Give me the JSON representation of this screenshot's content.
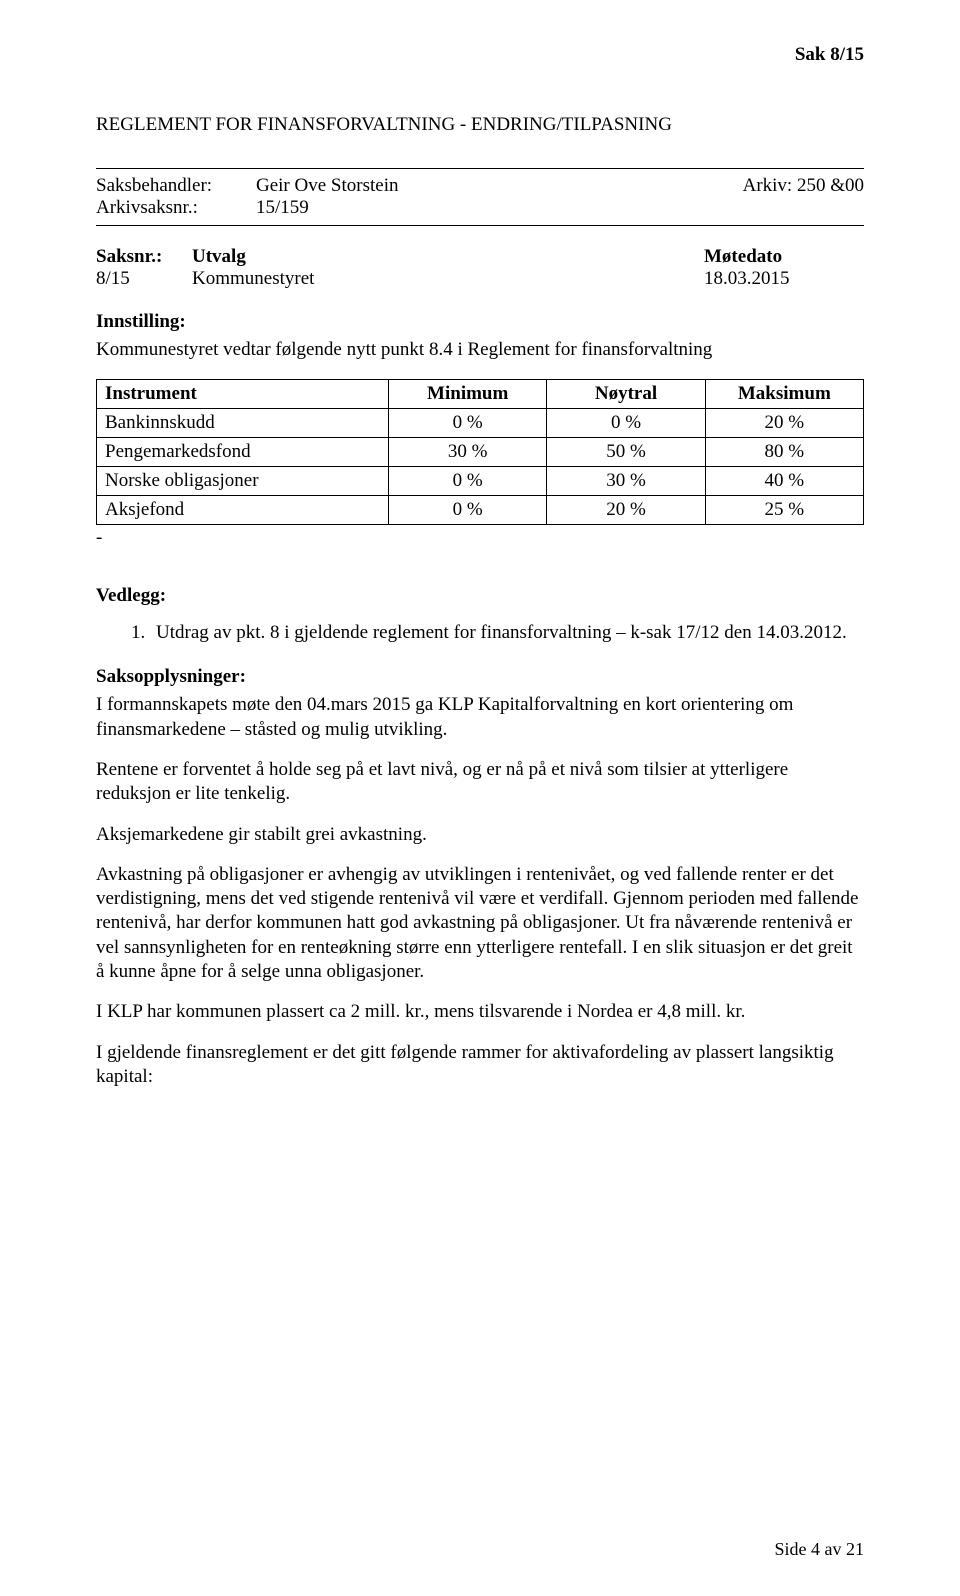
{
  "header": {
    "sak_label": "Sak  8/15"
  },
  "title": "REGLEMENT FOR FINANSFORVALTNING - ENDRING/TILPASNING",
  "meta": {
    "saksbehandler_label": "Saksbehandler:",
    "saksbehandler_value": "Geir Ove Storstein",
    "arkiv_label": "Arkiv: 250 &00",
    "arkivsaksnr_label": "Arkivsaksnr.:",
    "arkivsaksnr_value": "15/159"
  },
  "utvalg": {
    "header": {
      "saksnr": "Saksnr.:",
      "utvalg": "Utvalg",
      "motedato": "Møtedato"
    },
    "row": {
      "saksnr": "8/15",
      "utvalg": "Kommunestyret",
      "motedato": "18.03.2015"
    }
  },
  "innstilling": {
    "heading": "Innstilling:",
    "text": "Kommunestyret vedtar følgende nytt punkt 8.4 i Reglement for finansforvaltning"
  },
  "table": {
    "headers": {
      "instrument": "Instrument",
      "minimum": "Minimum",
      "noytral": "Nøytral",
      "maksimum": "Maksimum"
    },
    "rows": [
      {
        "instrument": "Bankinnskudd",
        "min": "0 %",
        "noy": "0 %",
        "max": "20 %"
      },
      {
        "instrument": "Pengemarkedsfond",
        "min": "30 %",
        "noy": "50 %",
        "max": "80 %"
      },
      {
        "instrument": "Norske obligasjoner",
        "min": "0 %",
        "noy": "30 %",
        "max": "40 %"
      },
      {
        "instrument": "Aksjefond",
        "min": "0 %",
        "noy": "20 %",
        "max": "25 %"
      }
    ]
  },
  "dash": "-",
  "vedlegg": {
    "heading": "Vedlegg:",
    "items": [
      "Utdrag av pkt. 8 i gjeldende reglement for finansforvaltning – k-sak 17/12 den 14.03.2012."
    ]
  },
  "saksopp_heading": "Saksopplysninger:",
  "paragraphs": [
    "I formannskapets møte den 04.mars 2015 ga KLP Kapitalforvaltning en kort orientering om finansmarkedene – ståsted og mulig utvikling.",
    "Rentene er forventet å holde seg på et lavt nivå, og er nå på et nivå som tilsier at ytterligere reduksjon er lite tenkelig.",
    "Aksjemarkedene gir stabilt grei avkastning.",
    "Avkastning på obligasjoner er avhengig av utviklingen i rentenivået, og ved fallende renter er det verdistigning, mens det ved stigende rentenivå vil være et verdifall. Gjennom perioden med fallende rentenivå, har derfor kommunen hatt god avkastning på obligasjoner. Ut fra nåværende rentenivå er vel sannsynligheten for en renteøkning større enn ytterligere rentefall. I en slik situasjon er det greit å kunne åpne for å selge unna obligasjoner.",
    "I KLP har kommunen plassert ca 2 mill. kr., mens tilsvarende i Nordea er 4,8 mill. kr.",
    "I gjeldende finansreglement er det gitt følgende rammer for aktivafordeling av plassert langsiktig kapital:"
  ],
  "footer": "Side 4 av 21"
}
